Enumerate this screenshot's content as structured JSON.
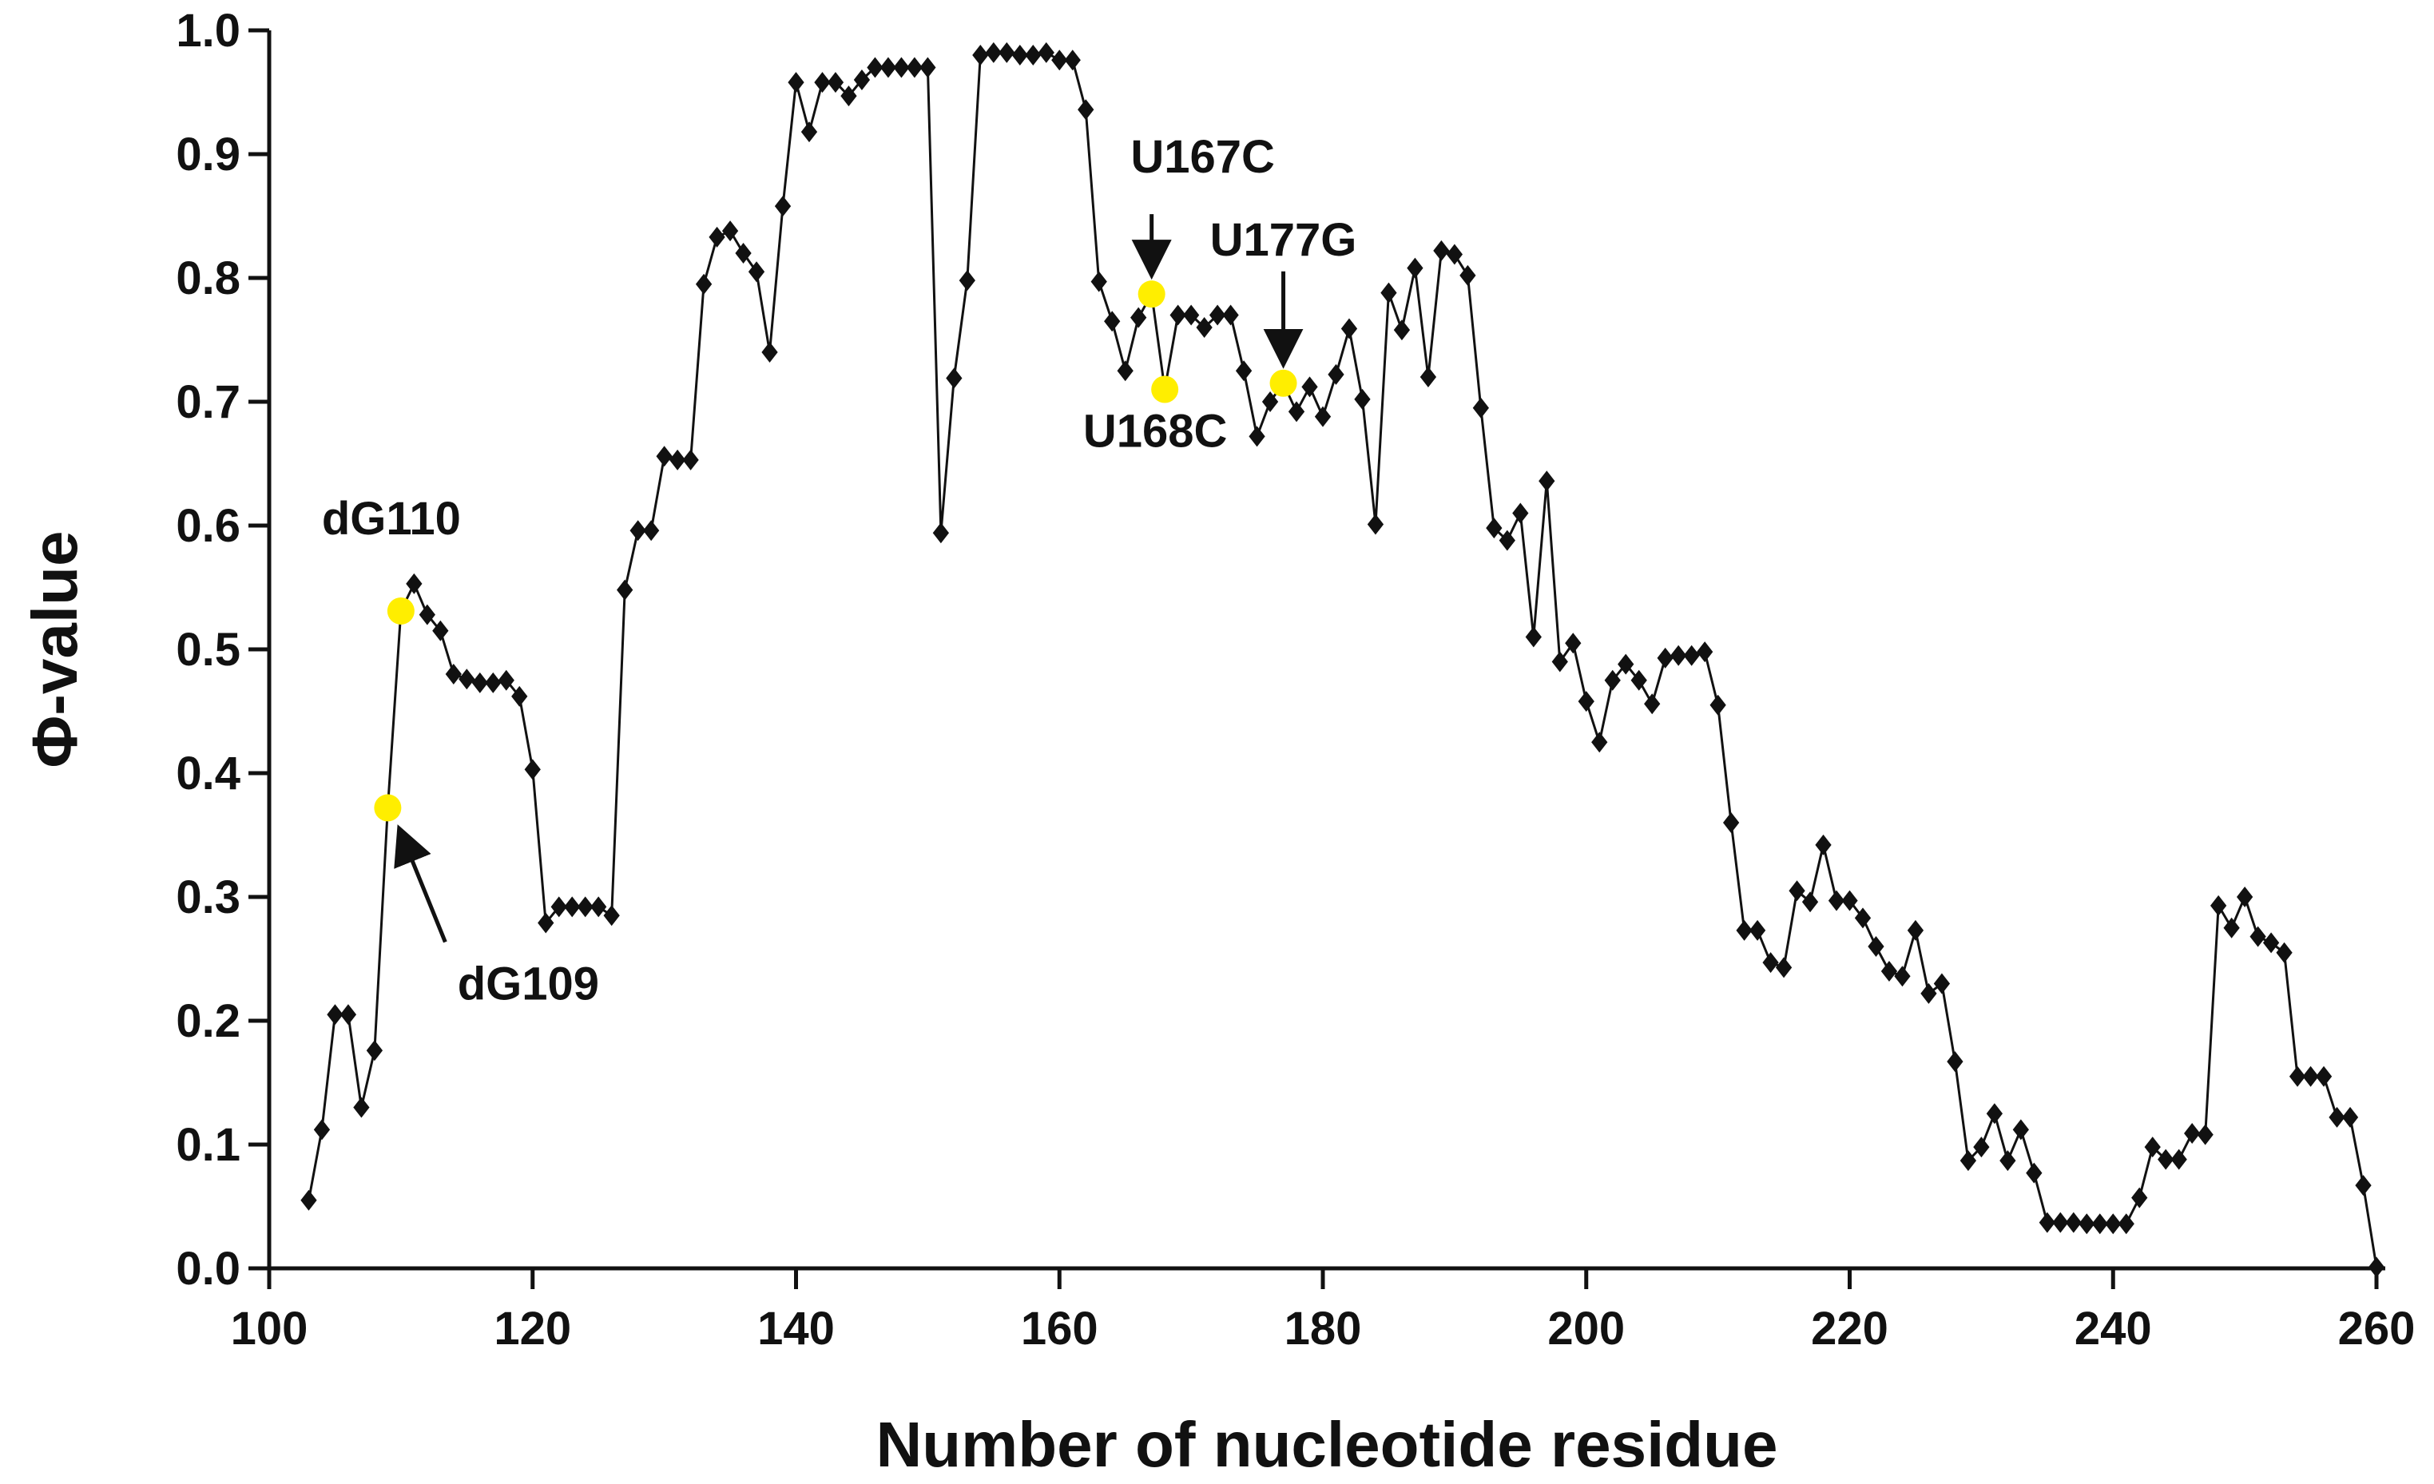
{
  "chart_data": {
    "type": "line",
    "xlabel": "Number of nucleotide residue",
    "ylabel": "Φ-value",
    "xlim": [
      100,
      260
    ],
    "ylim": [
      0,
      1.0
    ],
    "xticks": [
      "100",
      "120",
      "140",
      "160",
      "180",
      "200",
      "220",
      "240",
      "260"
    ],
    "yticks": [
      "0.0",
      "0.1",
      "0.2",
      "0.3",
      "0.4",
      "0.5",
      "0.6",
      "0.7",
      "0.8",
      "0.9",
      "1.0"
    ],
    "grid": false,
    "colors": {
      "line": "#111111",
      "marker": "#111111",
      "highlight": "#ffee00"
    },
    "series": [
      {
        "marker": "diamond",
        "x": [
          103,
          104,
          105,
          106,
          107,
          108,
          109,
          110,
          111,
          112,
          113,
          114,
          115,
          116,
          117,
          118,
          119,
          120,
          121,
          122,
          123,
          124,
          125,
          126,
          127,
          128,
          129,
          130,
          131,
          132,
          133,
          134,
          135,
          136,
          137,
          138,
          139,
          140,
          141,
          142,
          143,
          144,
          145,
          146,
          147,
          148,
          149,
          150,
          151,
          152,
          153,
          154,
          155,
          156,
          157,
          158,
          159,
          160,
          161,
          162,
          163,
          164,
          165,
          166,
          167,
          168,
          169,
          170,
          171,
          172,
          173,
          174,
          175,
          176,
          177,
          178,
          179,
          180,
          181,
          182,
          183,
          184,
          185,
          186,
          187,
          188,
          189,
          190,
          191,
          192,
          193,
          194,
          195,
          196,
          197,
          198,
          199,
          200,
          201,
          202,
          203,
          204,
          205,
          206,
          207,
          208,
          209,
          210,
          211,
          212,
          213,
          214,
          215,
          216,
          217,
          218,
          219,
          220,
          221,
          222,
          223,
          224,
          225,
          226,
          227,
          228,
          229,
          230,
          231,
          232,
          233,
          234,
          235,
          236,
          237,
          238,
          239,
          240,
          241,
          242,
          243,
          244,
          245,
          246,
          247,
          248,
          249,
          250,
          251,
          252,
          253,
          254,
          255,
          256,
          257,
          258,
          259,
          260
        ],
        "y": [
          0.055,
          0.112,
          0.205,
          0.205,
          0.13,
          0.176,
          0.372,
          0.531,
          0.553,
          0.528,
          0.515,
          0.48,
          0.476,
          0.473,
          0.473,
          0.475,
          0.462,
          0.403,
          0.279,
          0.292,
          0.292,
          0.292,
          0.292,
          0.285,
          0.548,
          0.596,
          0.596,
          0.656,
          0.653,
          0.653,
          0.795,
          0.833,
          0.838,
          0.82,
          0.805,
          0.74,
          0.858,
          0.958,
          0.918,
          0.958,
          0.958,
          0.947,
          0.96,
          0.97,
          0.97,
          0.97,
          0.97,
          0.97,
          0.594,
          0.719,
          0.798,
          0.98,
          0.982,
          0.982,
          0.98,
          0.98,
          0.982,
          0.976,
          0.976,
          0.936,
          0.797,
          0.765,
          0.725,
          0.768,
          0.787,
          0.71,
          0.77,
          0.77,
          0.76,
          0.77,
          0.77,
          0.725,
          0.672,
          0.7,
          0.715,
          0.692,
          0.712,
          0.688,
          0.722,
          0.759,
          0.702,
          0.601,
          0.788,
          0.758,
          0.808,
          0.72,
          0.822,
          0.819,
          0.802,
          0.695,
          0.598,
          0.588,
          0.61,
          0.51,
          0.636,
          0.49,
          0.505,
          0.458,
          0.425,
          0.475,
          0.488,
          0.475,
          0.456,
          0.493,
          0.495,
          0.495,
          0.498,
          0.455,
          0.36,
          0.273,
          0.273,
          0.247,
          0.243,
          0.305,
          0.296,
          0.342,
          0.297,
          0.297,
          0.283,
          0.26,
          0.24,
          0.236,
          0.273,
          0.222,
          0.23,
          0.167,
          0.087,
          0.098,
          0.125,
          0.087,
          0.112,
          0.077,
          0.037,
          0.037,
          0.037,
          0.036,
          0.036,
          0.036,
          0.036,
          0.057,
          0.098,
          0.088,
          0.088,
          0.109,
          0.108,
          0.293,
          0.275,
          0.3,
          0.268,
          0.263,
          0.255,
          0.155,
          0.155,
          0.155,
          0.122,
          0.122,
          0.067,
          0.001
        ]
      }
    ],
    "highlighted_points": [
      {
        "x": 109,
        "y": 0.372
      },
      {
        "x": 110,
        "y": 0.531
      },
      {
        "x": 167,
        "y": 0.787
      },
      {
        "x": 168,
        "y": 0.71
      },
      {
        "x": 177,
        "y": 0.715
      }
    ],
    "annotations": [
      {
        "text": "dG110",
        "x": 110,
        "y": 0.531,
        "arrow": false
      },
      {
        "text": "dG109",
        "x": 109,
        "y": 0.372,
        "arrow": true
      },
      {
        "text": "U167C",
        "x": 167,
        "y": 0.787,
        "arrow": true
      },
      {
        "text": "U168C",
        "x": 168,
        "y": 0.71,
        "arrow": false
      },
      {
        "text": "U177G",
        "x": 177,
        "y": 0.715,
        "arrow": true
      }
    ]
  }
}
